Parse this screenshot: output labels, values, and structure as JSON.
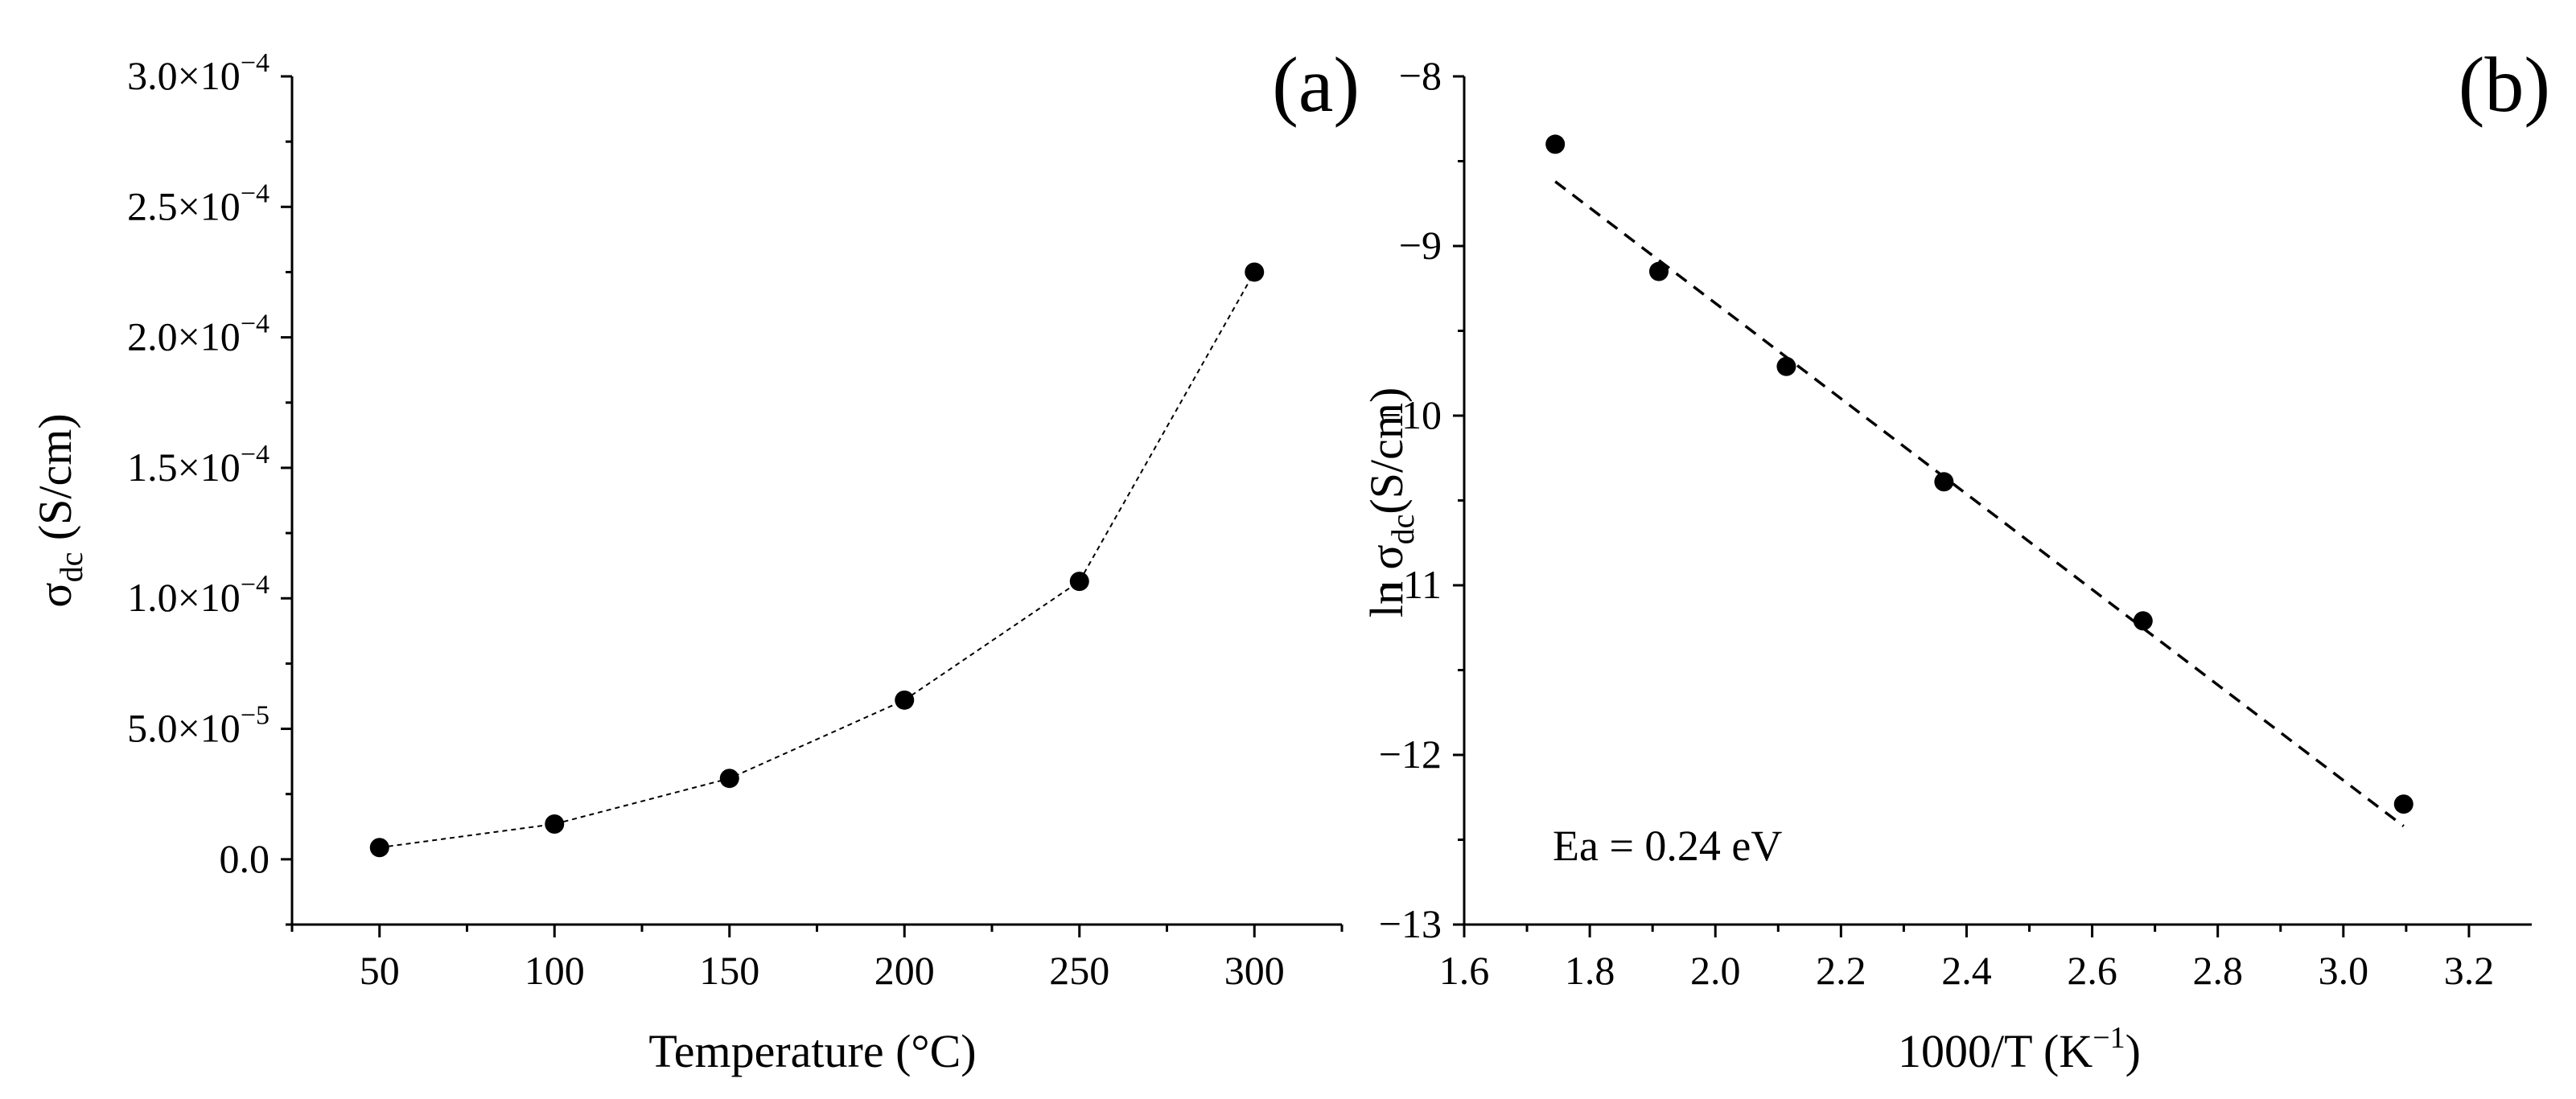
{
  "colors": {
    "ink": "#000000",
    "background": "#ffffff"
  },
  "chart_data": [
    {
      "type": "scatter",
      "panel_label": "(a)",
      "title": "",
      "xlabel": "Temperature  (°C)",
      "ylabel_main": "σ",
      "ylabel_sub": "dc",
      "ylabel_unit": " (S/cm)",
      "xlim": [
        25,
        325
      ],
      "ylim": [
        -2.5e-05,
        0.0003
      ],
      "x_ticks": [
        50,
        100,
        150,
        200,
        250,
        300
      ],
      "x_tick_labels": [
        "50",
        "100",
        "150",
        "200",
        "250",
        "300"
      ],
      "y_ticks": [
        0,
        5e-05,
        0.0001,
        0.00015,
        0.0002,
        0.00025,
        0.0003
      ],
      "y_tick_labels": [
        {
          "m": "0.0",
          "e": ""
        },
        {
          "m": "5.0×10",
          "e": "−5"
        },
        {
          "m": "1.0×10",
          "e": "−4"
        },
        {
          "m": "1.5×10",
          "e": "−4"
        },
        {
          "m": "2.0×10",
          "e": "−4"
        },
        {
          "m": "2.5×10",
          "e": "−4"
        },
        {
          "m": "3.0×10",
          "e": "−4"
        }
      ],
      "grid": false,
      "series": [
        {
          "name": "σdc",
          "x": [
            50,
            100,
            150,
            200,
            250,
            300
          ],
          "y": [
            4.5e-06,
            1.35e-05,
            3.1e-05,
            6.1e-05,
            0.0001065,
            0.000225
          ],
          "line": "dotted"
        }
      ]
    },
    {
      "type": "scatter",
      "panel_label": "(b)",
      "title": "",
      "xlabel_main": "1000/T (K",
      "xlabel_sup": "−1",
      "xlabel_end": ")",
      "ylabel_main": "ln σ",
      "ylabel_sub": "dc",
      "ylabel_unit": "(S/cm)",
      "xlim": [
        1.6,
        3.3
      ],
      "ylim": [
        -13,
        -8
      ],
      "x_ticks": [
        1.6,
        1.8,
        2.0,
        2.2,
        2.4,
        2.6,
        2.8,
        3.0,
        3.2
      ],
      "x_tick_labels": [
        "1.6",
        "1.8",
        "2.0",
        "2.2",
        "2.4",
        "2.6",
        "2.8",
        "3.0",
        "3.2"
      ],
      "y_ticks": [
        -13,
        -12,
        -11,
        -10,
        -9,
        -8
      ],
      "y_tick_labels": [
        "−13",
        "−12",
        "−11",
        "−10",
        "−9",
        "−8"
      ],
      "grid": false,
      "annotation": "Ea = 0.24 eV",
      "series": [
        {
          "name": "ln σdc",
          "x": [
            1.745,
            1.91,
            2.113,
            2.364,
            2.681,
            3.096
          ],
          "y": [
            -8.4,
            -9.15,
            -9.71,
            -10.39,
            -11.21,
            -12.29
          ]
        }
      ],
      "fit_line": {
        "x": [
          1.745,
          3.096
        ],
        "y": [
          -8.62,
          -12.42
        ],
        "style": "dashed"
      }
    }
  ]
}
